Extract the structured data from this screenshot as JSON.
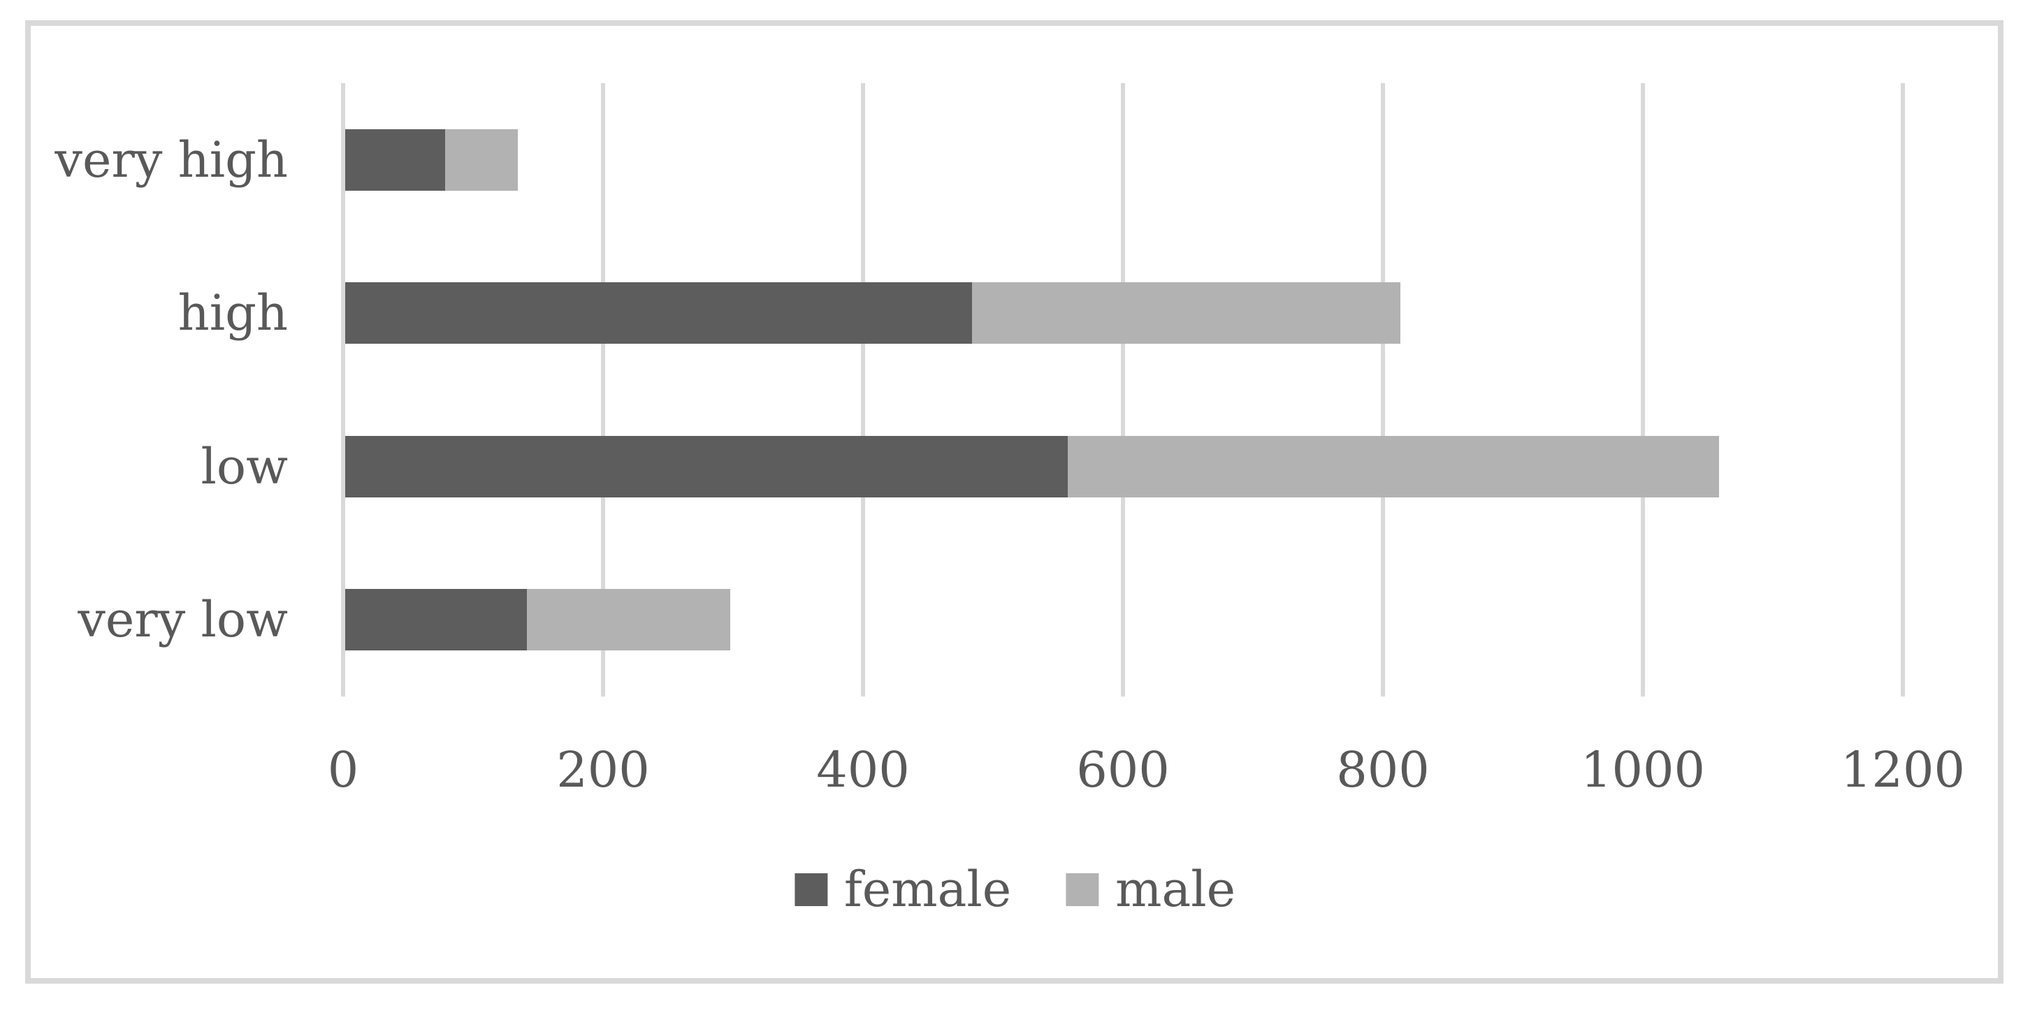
{
  "chart_data": {
    "type": "bar",
    "orientation": "horizontal",
    "stacked": true,
    "title": "",
    "xlabel": "",
    "ylabel": "",
    "categories": [
      "very high",
      "high",
      "low",
      "very low"
    ],
    "category_order": "top-to-bottom",
    "series": [
      {
        "name": "female",
        "color": "#5d5d5d",
        "values": [
          77,
          482,
          556,
          140
        ]
      },
      {
        "name": "male",
        "color": "#b2b2b2",
        "values": [
          56,
          330,
          501,
          156
        ]
      }
    ],
    "stacked_totals": [
      133,
      812,
      1057,
      296
    ],
    "xlim": [
      0,
      1200
    ],
    "x_ticks": [
      0,
      200,
      400,
      600,
      800,
      1000,
      1200
    ],
    "x_tick_labels": [
      "0",
      "200",
      "400",
      "600",
      "800",
      "1000",
      "1200"
    ],
    "grid": "vertical",
    "legend": {
      "position": "bottom-center",
      "entries": [
        "female",
        "male"
      ]
    },
    "colors": {
      "gridline": "#d9d9d9",
      "frame_border": "#d9d9d9",
      "axis_text": "#595959",
      "background": "#ffffff"
    }
  }
}
